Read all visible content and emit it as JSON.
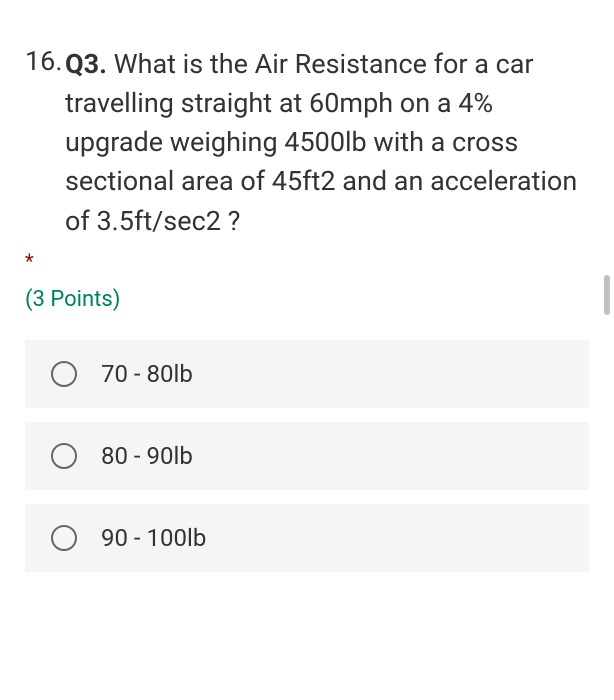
{
  "question": {
    "number": "16.",
    "prefix": "Q3.",
    "text": " What is the Air Resistance for a car travelling straight at 60mph on a 4% upgrade weighing 4500lb with a cross sectional area of 45ft2 and an acceleration of 3.5ft/sec2 ?",
    "required_marker": "*",
    "points": "(3 Points)"
  },
  "options": [
    {
      "label": "70 - 80lb"
    },
    {
      "label": "80 - 90lb"
    },
    {
      "label": "90 - 100lb"
    }
  ],
  "colors": {
    "background": "#ffffff",
    "text": "#333333",
    "points_text": "#008060",
    "required": "#a80000",
    "option_bg": "#f5f5f5",
    "radio_border": "#666666",
    "scrollbar": "#c0c0c0"
  }
}
